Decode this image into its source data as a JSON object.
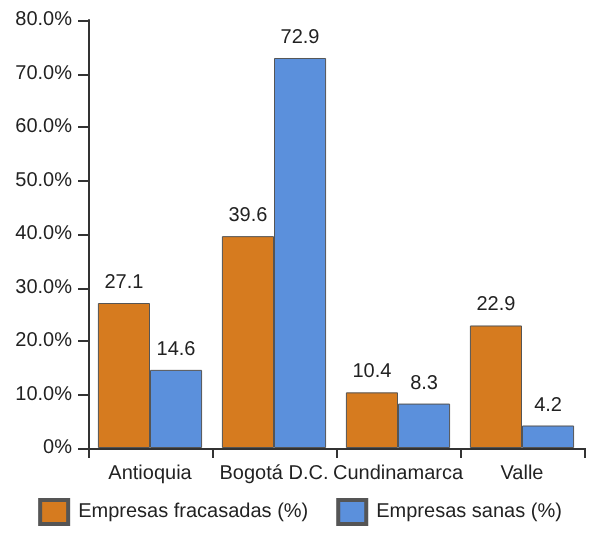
{
  "chart_data": {
    "type": "bar",
    "categories": [
      "Antioquia",
      "Bogotá D.C.",
      "Cundinamarca",
      "Valle"
    ],
    "series": [
      {
        "name": "Empresas fracasadas (%)",
        "color": "#d67b1f",
        "values": [
          27.1,
          39.6,
          10.4,
          22.9
        ]
      },
      {
        "name": "Empresas sanas (%)",
        "color": "#5b90dc",
        "values": [
          14.6,
          72.9,
          8.3,
          4.2
        ]
      }
    ],
    "ylim": [
      0,
      80
    ],
    "yticks": [
      {
        "value": 0,
        "label": "0%"
      },
      {
        "value": 10,
        "label": "10.0%"
      },
      {
        "value": 20,
        "label": "20.0%"
      },
      {
        "value": 30,
        "label": "30.0%"
      },
      {
        "value": 40,
        "label": "40.0%"
      },
      {
        "value": 50,
        "label": "50.0%"
      },
      {
        "value": 60,
        "label": "60.0%"
      },
      {
        "value": 70,
        "label": "70.0%"
      },
      {
        "value": 80,
        "label": "80.0%"
      }
    ],
    "data_labels": true,
    "grid": false,
    "legend": "bottom"
  }
}
